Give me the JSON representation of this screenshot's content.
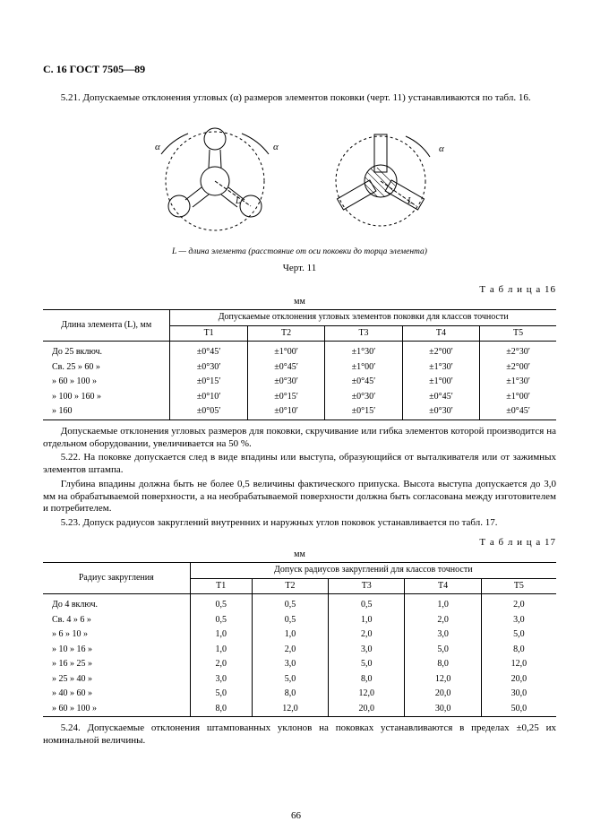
{
  "header": "С. 16 ГОСТ 7505—89",
  "para_521": "5.21. Допускаемые отклонения угловых (α) размеров элементов поковки (черт. 11) устанавливаются по табл. 16.",
  "figure": {
    "caption_italic": "L — длина элемента (расстояние от оси поковки до торца элемента)",
    "number": "Черт. 11",
    "alpha1": "α",
    "alpha2": "α",
    "alpha3": "α",
    "Llabel1": "L",
    "Llabel2": "L"
  },
  "table16": {
    "label": "Т а б л и ц а   16",
    "unit": "мм",
    "col_left": "Длина элемента (L), мм",
    "col_head": "Допускаемые  отклонения угловых элементов поковки для классов точности",
    "cols": [
      "Т1",
      "Т2",
      "Т3",
      "Т4",
      "Т5"
    ],
    "rows": [
      {
        "l": "До 25 включ.",
        "v": [
          "±0°45ʹ",
          "±1°00ʹ",
          "±1°30ʹ",
          "±2°00ʹ",
          "±2°30ʹ"
        ]
      },
      {
        "l": "Св.  25  »  60    »",
        "v": [
          "±0°30ʹ",
          "±0°45ʹ",
          "±1°00ʹ",
          "±1°30ʹ",
          "±2°00ʹ"
        ]
      },
      {
        "l": "  »  60  » 100    »",
        "v": [
          "±0°15ʹ",
          "±0°30ʹ",
          "±0°45ʹ",
          "±1°00ʹ",
          "±1°30ʹ"
        ]
      },
      {
        "l": "  » 100  » 160    »",
        "v": [
          "±0°10ʹ",
          "±0°15ʹ",
          "±0°30ʹ",
          "±0°45ʹ",
          "±1°00ʹ"
        ]
      },
      {
        "l": "  » 160",
        "v": [
          "±0°05ʹ",
          "±0°10ʹ",
          "±0°15ʹ",
          "±0°30ʹ",
          "±0°45ʹ"
        ]
      }
    ]
  },
  "para_after16_a": "Допускаемые отклонения угловых размеров для поковки, скручивание или гибка элементов которой производится на отдельном оборудовании, увеличивается на 50 %.",
  "para_522a": "5.22. На поковке допускается след в виде впадины или выступа, образующийся от выталкивателя или от зажимных элементов штампа.",
  "para_522b": "Глубина впадины должна быть не более 0,5 величины фактического припуска. Высота выступа допускается до 3,0 мм на обрабатываемой поверхности, а на необрабатываемой поверхности должна быть согласована между изготовителем и потребителем.",
  "para_523": "5.23. Допуск радиусов закруглений внутренних и наружных углов поковок устанавливается по табл. 17.",
  "table17": {
    "label": "Т а б л и ц а   17",
    "unit": "мм",
    "col_left": "Радиус закругления",
    "col_head": "Допуск радиусов закруглений для классов точности",
    "cols": [
      "Т1",
      "Т2",
      "Т3",
      "Т4",
      "Т5"
    ],
    "rows": [
      {
        "l": "До  4  включ.",
        "v": [
          "0,5",
          "0,5",
          "0,5",
          "1,0",
          "2,0"
        ]
      },
      {
        "l": "Св.   4  »   6    »",
        "v": [
          "0,5",
          "0,5",
          "1,0",
          "2,0",
          "3,0"
        ]
      },
      {
        "l": "  »   6  »  10    »",
        "v": [
          "1,0",
          "1,0",
          "2,0",
          "3,0",
          "5,0"
        ]
      },
      {
        "l": "  »  10  »  16    »",
        "v": [
          "1,0",
          "2,0",
          "3,0",
          "5,0",
          "8,0"
        ]
      },
      {
        "l": "  »  16  »  25    »",
        "v": [
          "2,0",
          "3,0",
          "5,0",
          "8,0",
          "12,0"
        ]
      },
      {
        "l": "  »  25  »  40    »",
        "v": [
          "3,0",
          "5,0",
          "8,0",
          "12,0",
          "20,0"
        ]
      },
      {
        "l": "  »  40  »  60    »",
        "v": [
          "5,0",
          "8,0",
          "12,0",
          "20,0",
          "30,0"
        ]
      },
      {
        "l": "  »  60  » 100    »",
        "v": [
          "8,0",
          "12,0",
          "20,0",
          "30,0",
          "50,0"
        ]
      }
    ]
  },
  "para_524": "5.24. Допускаемые отклонения штампованных уклонов на поковках устанавливаются в пределах ±0,25 их номинальной величины.",
  "page_number": "66"
}
